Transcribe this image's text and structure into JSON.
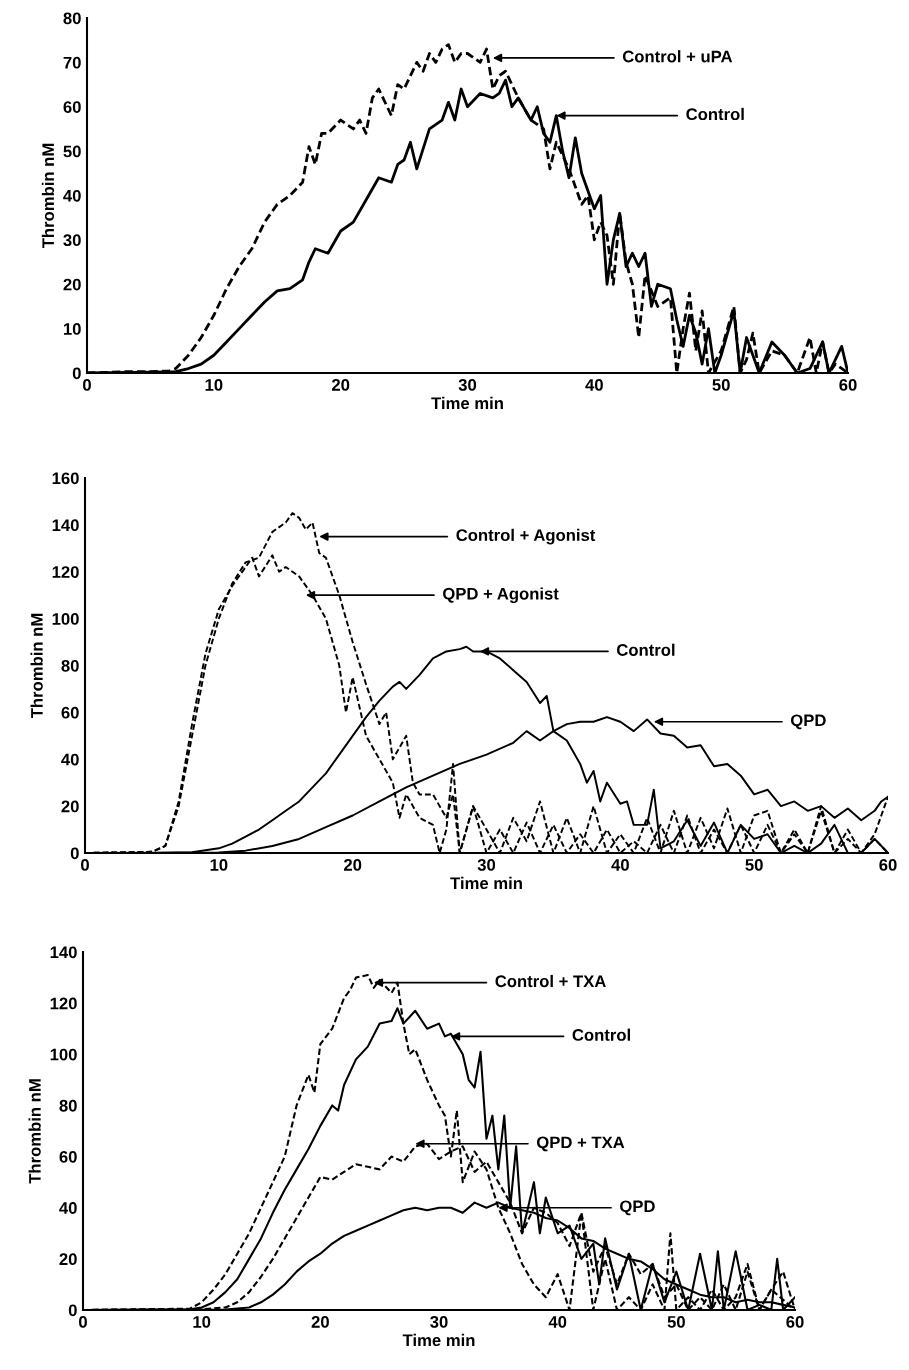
{
  "chart_data": [
    {
      "type": "line",
      "xlabel": "Time min",
      "ylabel": "Thrombin nM",
      "xlim": [
        0,
        60
      ],
      "ylim": [
        0,
        80
      ],
      "xticks": [
        0,
        10,
        20,
        30,
        40,
        50,
        60
      ],
      "yticks": [
        0,
        10,
        20,
        30,
        40,
        50,
        60,
        70,
        80
      ],
      "grid": false,
      "legend": false,
      "series": [
        {
          "color": "#000000",
          "line_style": "dashed",
          "x": [
            0,
            3,
            5,
            6.5,
            7,
            8,
            9,
            10,
            11,
            12,
            13,
            14,
            15,
            16,
            17,
            17.5,
            18,
            18.5,
            19,
            20,
            21,
            21.5,
            22,
            22.5,
            23,
            24,
            24.5,
            25,
            26,
            26.5,
            27,
            27.5,
            28,
            28.5,
            29,
            29.5,
            30,
            31,
            31.5,
            32,
            32.5,
            33,
            34,
            35,
            36,
            36.5,
            37,
            38,
            39,
            39.5,
            40,
            40.5,
            41,
            41.5,
            42,
            42.5,
            43,
            43.5,
            44,
            45,
            46,
            46.5,
            47,
            47.5,
            48,
            48.5,
            49,
            50,
            51,
            51.5,
            52,
            52.5,
            53,
            54,
            55,
            56,
            57,
            57.5,
            58,
            58.5,
            59,
            60
          ],
          "values": [
            0,
            0.3,
            0.3,
            0.5,
            1,
            4,
            8,
            13,
            19,
            24,
            28,
            34,
            38,
            40,
            43,
            51,
            47,
            54,
            54,
            57,
            55,
            57,
            54,
            62,
            64,
            58,
            65,
            64,
            70,
            68,
            72,
            70,
            73,
            74,
            70,
            72,
            72,
            70,
            73,
            64,
            67,
            68,
            62,
            57,
            55,
            46,
            52,
            46,
            38,
            40,
            30,
            34,
            31,
            20,
            36,
            25,
            20,
            8,
            22,
            15,
            17,
            0,
            10,
            18,
            5,
            14,
            0,
            5,
            15,
            0,
            3,
            9,
            0,
            5,
            4,
            0,
            8,
            0,
            7,
            0,
            2,
            0
          ]
        },
        {
          "color": "#000000",
          "line_style": "solid",
          "x": [
            0,
            5,
            7,
            8,
            9,
            10,
            11,
            12,
            13,
            14,
            15,
            16,
            17,
            17.5,
            18,
            19,
            20,
            21,
            22,
            23,
            24,
            24.5,
            25,
            25.5,
            26,
            27,
            28,
            28.5,
            29,
            29.5,
            30,
            31,
            32,
            32.5,
            33,
            33.5,
            34,
            35,
            35.5,
            36,
            36.5,
            37,
            37.5,
            38,
            38.5,
            39,
            40,
            40.5,
            41,
            41.5,
            42,
            42.5,
            43,
            43.5,
            44,
            44.5,
            45,
            46,
            46.5,
            47,
            47.5,
            48,
            48.5,
            49,
            49.5,
            50,
            51,
            51.5,
            52,
            53,
            54,
            55,
            56,
            57,
            58,
            58.5,
            59.5,
            60
          ],
          "values": [
            0,
            0.2,
            0.3,
            1,
            2,
            4,
            7,
            10,
            13,
            16,
            18.5,
            19,
            21,
            25,
            28,
            27,
            32,
            34,
            39,
            44,
            43,
            47,
            48,
            52,
            46,
            55,
            57,
            61,
            57,
            64,
            60,
            63,
            62,
            63,
            66,
            60,
            62,
            57,
            60,
            54,
            52,
            58,
            50,
            44,
            53,
            45,
            37,
            40,
            20,
            30,
            36,
            24,
            27,
            24,
            27,
            15,
            20,
            19,
            12,
            6,
            13,
            9,
            2,
            10,
            0,
            4,
            14,
            0,
            8,
            0,
            7,
            4,
            0,
            1,
            7,
            0,
            6,
            0
          ]
        }
      ],
      "annotations": [
        {
          "text": "Control + uPA",
          "x": 32,
          "y": 71
        },
        {
          "text": "Control",
          "x": 37,
          "y": 58
        }
      ]
    },
    {
      "type": "line",
      "xlabel": "Time min",
      "ylabel": "Thrombin nM",
      "xlim": [
        0,
        60
      ],
      "ylim": [
        0,
        160
      ],
      "xticks": [
        0,
        10,
        20,
        30,
        40,
        50,
        60
      ],
      "yticks": [
        0,
        20,
        40,
        60,
        80,
        100,
        120,
        140,
        160
      ],
      "grid": false,
      "legend": false,
      "series": [
        {
          "color": "#000000",
          "line_style": "dashed",
          "x": [
            0,
            5,
            6,
            7,
            8,
            9,
            10,
            11,
            12,
            13,
            14,
            15,
            15.5,
            16,
            16.5,
            17,
            17.5,
            18,
            19,
            20,
            21,
            22,
            22.5,
            23,
            24,
            24.5,
            25,
            26,
            27,
            27.5,
            28,
            29,
            30,
            31,
            32,
            33,
            34,
            35,
            36,
            37,
            38,
            39,
            40,
            41,
            42,
            43,
            44,
            45,
            46,
            47,
            48,
            49,
            50,
            51,
            52,
            53,
            54,
            55,
            56,
            57,
            58,
            59,
            60
          ],
          "values": [
            0,
            0.5,
            3,
            20,
            50,
            80,
            100,
            115,
            124,
            126,
            137,
            141,
            145,
            143,
            138,
            141,
            128,
            126,
            110,
            90,
            72,
            55,
            60,
            40,
            50,
            30,
            25,
            25,
            15,
            25,
            0,
            20,
            10,
            0,
            15,
            5,
            22,
            0,
            15,
            0,
            20,
            0,
            8,
            0,
            15,
            0,
            18,
            0,
            15,
            2,
            19,
            0,
            16,
            18,
            0,
            10,
            0,
            20,
            0,
            10,
            0,
            8,
            24
          ]
        },
        {
          "color": "#000000",
          "line_style": "dashed",
          "x": [
            0,
            5,
            6,
            7,
            8,
            9,
            10,
            11,
            12,
            12.5,
            13,
            14,
            14.5,
            15,
            16,
            17,
            18,
            19,
            19.5,
            20,
            21,
            22,
            23,
            23.5,
            24,
            25,
            26,
            26.5,
            27,
            27.5,
            28,
            29,
            30,
            31,
            32,
            33,
            34,
            35,
            36,
            37,
            38,
            39,
            40,
            41,
            42,
            43,
            44,
            45,
            46,
            47,
            48,
            49,
            50,
            51,
            52,
            53,
            54,
            55,
            56,
            57,
            58,
            59,
            60
          ],
          "values": [
            0,
            0.5,
            3,
            22,
            55,
            85,
            104,
            114,
            122,
            126,
            118,
            127,
            120,
            122,
            118,
            110,
            100,
            80,
            60,
            75,
            50,
            40,
            30,
            15,
            25,
            15,
            12,
            0,
            10,
            38,
            0,
            20,
            0,
            10,
            0,
            13,
            0,
            12,
            0,
            8,
            0,
            10,
            0,
            5,
            0,
            12,
            0,
            16,
            0,
            10,
            0,
            12,
            0,
            12,
            0,
            8,
            0,
            18,
            0,
            6,
            0,
            6,
            0
          ]
        },
        {
          "color": "#000000",
          "line_style": "solid",
          "x": [
            0,
            5,
            8,
            10,
            11,
            12,
            13,
            14,
            15,
            16,
            17,
            18,
            19,
            20,
            21,
            22,
            23,
            23.5,
            24,
            25,
            26,
            27,
            28,
            28.5,
            29,
            30,
            31,
            32,
            33,
            34,
            34.5,
            35,
            36,
            37,
            37.5,
            38,
            38.5,
            39,
            40,
            40.5,
            41,
            42,
            42.5,
            43,
            44,
            45,
            46,
            47,
            48,
            49,
            50,
            51,
            52,
            53,
            54,
            55,
            56,
            57,
            58,
            59,
            60
          ],
          "values": [
            0,
            0,
            0.3,
            2,
            4,
            7,
            10,
            14,
            18,
            22,
            28,
            34,
            42,
            50,
            58,
            65,
            71,
            73,
            70,
            76,
            83,
            86,
            87,
            88,
            86,
            86,
            83,
            78,
            73,
            64,
            67,
            52,
            48,
            38,
            30,
            35,
            22,
            30,
            21,
            22,
            12,
            12,
            27,
            2,
            5,
            14,
            3,
            13,
            0,
            12,
            6,
            8,
            0,
            3,
            0,
            4,
            12,
            0,
            0,
            6,
            0
          ]
        },
        {
          "color": "#000000",
          "line_style": "solid",
          "x": [
            0,
            10,
            12,
            14,
            16,
            18,
            20,
            22,
            24,
            26,
            28,
            30,
            32,
            33,
            34,
            35,
            36,
            37,
            38,
            39,
            40,
            41,
            42,
            43,
            44,
            45,
            46,
            47,
            48,
            49,
            50,
            51,
            52,
            53,
            54,
            55,
            56,
            57,
            58,
            59,
            59.5,
            60
          ],
          "values": [
            0,
            0.2,
            1,
            3,
            6,
            11,
            16,
            22,
            28,
            33,
            38,
            42,
            47,
            52,
            48,
            52,
            55,
            56,
            56,
            58,
            56,
            52,
            57,
            51,
            50,
            45,
            46,
            37,
            38,
            33,
            25,
            27,
            20,
            22,
            18,
            20,
            15,
            19,
            14,
            18,
            22,
            24
          ]
        }
      ],
      "annotations": [
        {
          "text": "Control + Agonist",
          "x": 17.5,
          "y": 135
        },
        {
          "text": "QPD + Agonist",
          "x": 16.5,
          "y": 110
        },
        {
          "text": "Control",
          "x": 29.5,
          "y": 86
        },
        {
          "text": "QPD",
          "x": 42.5,
          "y": 56
        }
      ]
    },
    {
      "type": "line",
      "xlabel": "Time min",
      "ylabel": "Thrombin nM",
      "xlim": [
        0,
        60
      ],
      "ylim": [
        0,
        140
      ],
      "xticks": [
        0,
        10,
        20,
        30,
        40,
        50,
        60
      ],
      "yticks": [
        0,
        20,
        40,
        60,
        80,
        100,
        120,
        140
      ],
      "grid": false,
      "legend": false,
      "series": [
        {
          "color": "#000000",
          "line_style": "dashed",
          "x": [
            0,
            9,
            10,
            11,
            12,
            13,
            14,
            15,
            16,
            17,
            17.5,
            18,
            19,
            19.5,
            20,
            21,
            22,
            22.5,
            23,
            24,
            24.5,
            25,
            26,
            26.5,
            27,
            27.5,
            28,
            28.5,
            29,
            30,
            30.5,
            31,
            31.5,
            32,
            33,
            34,
            35,
            36,
            37,
            38,
            39,
            40,
            41,
            42,
            43,
            44,
            45,
            46,
            47,
            48,
            49,
            49.5,
            50,
            51,
            52,
            53,
            54,
            55,
            56,
            57,
            58,
            59,
            60
          ],
          "values": [
            0,
            0.5,
            3,
            8,
            14,
            22,
            30,
            40,
            50,
            60,
            70,
            80,
            92,
            85,
            104,
            110,
            122,
            125,
            130,
            131,
            126,
            129,
            124,
            128,
            112,
            100,
            102,
            96,
            90,
            80,
            76,
            60,
            78,
            50,
            62,
            55,
            40,
            30,
            18,
            10,
            5,
            14,
            0,
            38,
            0,
            20,
            0,
            5,
            0,
            10,
            0,
            30,
            0,
            5,
            0,
            8,
            0,
            5,
            18,
            0,
            8,
            15,
            0
          ]
        },
        {
          "color": "#000000",
          "line_style": "solid",
          "x": [
            0,
            9,
            10,
            11,
            12,
            13,
            14,
            15,
            16,
            17,
            18,
            19,
            20,
            21,
            21.5,
            22,
            23,
            24,
            25,
            26,
            26.5,
            27,
            28,
            29,
            30,
            30.5,
            31,
            32,
            32.5,
            33,
            33.5,
            34,
            34.5,
            35,
            35.5,
            36,
            36.5,
            37,
            38,
            38.5,
            39,
            40,
            41,
            42,
            43,
            43.5,
            44,
            45,
            46,
            47,
            48,
            49,
            50,
            51,
            52,
            53,
            53.5,
            54,
            55,
            56,
            57,
            58,
            58.5,
            59,
            60
          ],
          "values": [
            0,
            0.3,
            1,
            3,
            7,
            12,
            20,
            28,
            38,
            47,
            55,
            63,
            72,
            80,
            78,
            88,
            98,
            103,
            112,
            113,
            118,
            112,
            117,
            110,
            112,
            107,
            108,
            100,
            90,
            87,
            101,
            67,
            76,
            55,
            76,
            40,
            64,
            30,
            50,
            30,
            44,
            30,
            33,
            20,
            26,
            10,
            28,
            8,
            22,
            0,
            18,
            3,
            15,
            0,
            22,
            0,
            23,
            0,
            23,
            0,
            2,
            0,
            20,
            0,
            5
          ]
        },
        {
          "color": "#000000",
          "line_style": "dashed",
          "x": [
            0,
            10,
            12,
            13,
            14,
            15,
            16,
            17,
            18,
            19,
            20,
            21,
            22,
            23,
            24,
            25,
            26,
            27,
            28,
            29,
            30,
            31,
            32,
            33,
            34,
            35,
            36,
            37,
            38,
            39,
            40,
            41,
            42,
            43,
            44,
            45,
            46,
            47,
            48,
            49,
            50,
            51,
            52,
            53,
            54,
            55,
            56,
            57,
            58,
            59,
            60
          ],
          "values": [
            0,
            0.3,
            1,
            3,
            7,
            13,
            20,
            28,
            36,
            44,
            52,
            51,
            54,
            57,
            56,
            55,
            60,
            58,
            64,
            65,
            59,
            62,
            64,
            54,
            58,
            50,
            42,
            30,
            40,
            38,
            34,
            25,
            38,
            15,
            25,
            10,
            22,
            14,
            18,
            5,
            10,
            0,
            5,
            0,
            10,
            0,
            15,
            0,
            8,
            4,
            0
          ]
        },
        {
          "color": "#000000",
          "line_style": "solid",
          "x": [
            0,
            12,
            14,
            15,
            16,
            17,
            18,
            19,
            20,
            21,
            22,
            23,
            24,
            25,
            26,
            27,
            28,
            29,
            30,
            31,
            32,
            33,
            34,
            35,
            36,
            37,
            38,
            39,
            40,
            41,
            42,
            43,
            44,
            45,
            46,
            47,
            48,
            49,
            50,
            51,
            52,
            53,
            54,
            55,
            56,
            57,
            58,
            59,
            60
          ],
          "values": [
            0,
            0.2,
            1,
            3,
            6,
            10,
            15,
            19,
            22,
            26,
            29,
            31,
            33,
            35,
            37,
            39,
            40,
            39,
            40,
            40,
            38,
            42,
            40,
            42,
            40,
            39,
            38,
            36,
            35,
            32,
            28,
            27,
            24,
            22,
            20,
            19,
            16,
            12,
            10,
            8,
            6,
            5,
            5,
            3,
            4,
            3,
            3,
            2,
            1
          ]
        }
      ],
      "annotations": [
        {
          "text": "Control + TXA",
          "x": 24.5,
          "y": 128
        },
        {
          "text": "Control",
          "x": 31,
          "y": 107
        },
        {
          "text": "QPD + TXA",
          "x": 28,
          "y": 65
        },
        {
          "text": "QPD",
          "x": 35,
          "y": 40
        }
      ]
    }
  ]
}
